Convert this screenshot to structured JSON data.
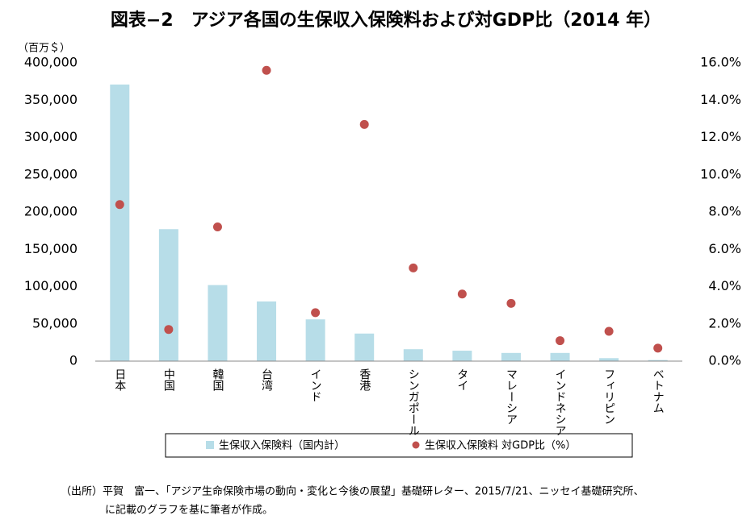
{
  "chart_data": {
    "type": "bar",
    "title": "図表−2　アジア各国の生保収入保険料および対GDP比（2014 年）",
    "y_unit": "（百万＄）",
    "categories": [
      "日本",
      "中国",
      "韓国",
      "台湾",
      "インド",
      "香港",
      "シンガポール",
      "タイ",
      "マレーシア",
      "インドネシア",
      "フィリピン",
      "ベトナム"
    ],
    "series": [
      {
        "name": "生保収入保険料（国内計）",
        "type": "bar",
        "color": "#b7dde8",
        "axis": "y",
        "values": [
          371000,
          177000,
          102000,
          80000,
          56000,
          37000,
          16000,
          14000,
          11000,
          11000,
          4000,
          1500
        ]
      },
      {
        "name": "生保収入保険料 対GDP比（%）",
        "type": "scatter",
        "color": "#c0504d",
        "axis": "y2",
        "values": [
          8.4,
          1.7,
          7.2,
          15.6,
          2.6,
          12.7,
          5.0,
          3.6,
          3.1,
          1.1,
          1.6,
          0.7
        ]
      }
    ],
    "ylim": [
      0,
      400000
    ],
    "yticks": [
      0,
      {
        "value": 50000,
        "label": "50,000"
      },
      {
        "value": 100000,
        "label": "100,000"
      },
      {
        "value": 150000,
        "label": "150,000"
      },
      {
        "value": 200000,
        "label": "200,000"
      },
      {
        "value": 250000,
        "label": "250,000"
      },
      {
        "value": 300000,
        "label": "300,000"
      },
      {
        "value": 350000,
        "label": "350,000"
      },
      {
        "value": 400000,
        "label": "400,000"
      }
    ],
    "y2lim": [
      0,
      16
    ],
    "y2ticks": [
      {
        "value": 0,
        "label": "0.0%"
      },
      {
        "value": 2,
        "label": "2.0%"
      },
      {
        "value": 4,
        "label": "4.0%"
      },
      {
        "value": 6,
        "label": "6.0%"
      },
      {
        "value": 8,
        "label": "8.0%"
      },
      {
        "value": 10,
        "label": "10.0%"
      },
      {
        "value": 12,
        "label": "12.0%"
      },
      {
        "value": 14,
        "label": "14.0%"
      },
      {
        "value": 16,
        "label": "16.0%"
      }
    ],
    "grid": false,
    "legend": "bottom",
    "source": [
      "（出所）平賀　富一、「アジア生命保険市場の動向・変化と今後の展望」基礎研レター、2015/7/21、ニッセイ基礎研究所、",
      "に記載のグラフを基に筆者が作成。"
    ]
  }
}
